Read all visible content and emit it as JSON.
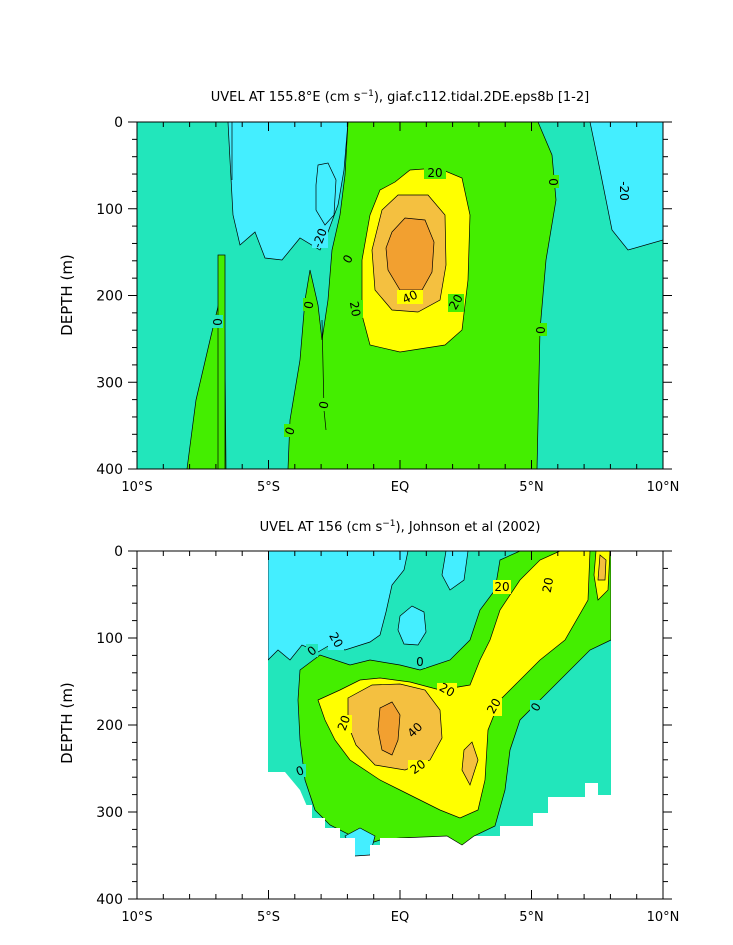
{
  "chart_data": [
    {
      "type": "contour",
      "title": "UVEL AT 155.8°E (cm s-1), giaf.c112.tidal.2DE.eps8b [1-2]",
      "title_parts": {
        "pre": "UVEL AT 155.8°E (cm s",
        "sup": "−1",
        "post": "), giaf.c112.tidal.2DE.eps8b [1-2]"
      },
      "ylabel": "DEPTH (m)",
      "xlabel": "",
      "xlim": [
        -10,
        10
      ],
      "ylim": [
        400,
        0
      ],
      "x_ticks": [
        -10,
        -5,
        0,
        5,
        10
      ],
      "x_tick_labels": [
        "10°S",
        "5°S",
        "EQ",
        "5°N",
        "10°N"
      ],
      "y_ticks": [
        0,
        100,
        200,
        300,
        400
      ],
      "y_tick_labels": [
        "0",
        "100",
        "200",
        "300",
        "400"
      ],
      "contour_levels": [
        -20,
        0,
        20,
        40
      ],
      "contour_labels": [
        "20",
        "0",
        "-20",
        "-20",
        "0",
        "20",
        "40",
        "20",
        "0",
        "0",
        "0",
        "0",
        "0"
      ],
      "core": {
        "x": 0.0,
        "depth": 160,
        "max": 60
      }
    },
    {
      "type": "contour",
      "title": "UVEL AT 156 (cm s-1), Johnson et al (2002)",
      "title_parts": {
        "pre": "UVEL AT 156 (cm s",
        "sup": "−1",
        "post": "), Johnson et al (2002)"
      },
      "ylabel": "DEPTH (m)",
      "xlabel": "",
      "xlim": [
        -10,
        10
      ],
      "ylim": [
        400,
        0
      ],
      "x_ticks": [
        -10,
        -5,
        0,
        5,
        10
      ],
      "x_tick_labels": [
        "10°S",
        "5°S",
        "EQ",
        "5°N",
        "10°N"
      ],
      "y_ticks": [
        0,
        100,
        200,
        300,
        400
      ],
      "y_tick_labels": [
        "0",
        "100",
        "200",
        "300",
        "400"
      ],
      "contour_levels": [
        -20,
        0,
        20,
        40
      ],
      "contour_labels": [
        "20",
        "20",
        "20",
        "0",
        "0",
        "20",
        "20",
        "20",
        "40",
        "20",
        "0",
        "0"
      ],
      "data_x_range": [
        -5,
        8
      ],
      "core": {
        "x": -0.2,
        "depth": 205,
        "max": 55
      }
    }
  ],
  "colors": {
    "neg20": "#44eeff",
    "neg0": "#22e6bb",
    "pos0": "#44ee00",
    "pos20": "#ffff00",
    "pos40": "#f4c040",
    "pos60": "#f2a030"
  }
}
